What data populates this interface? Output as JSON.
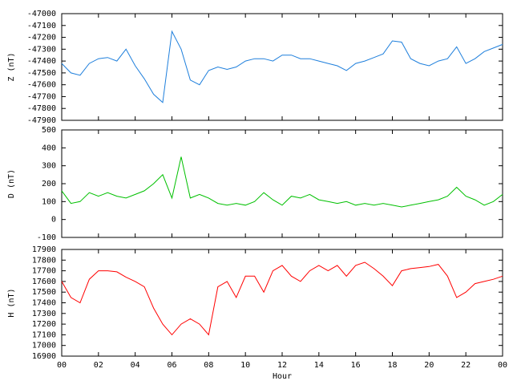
{
  "chart_data": [
    {
      "type": "line",
      "ylabel": "Z (nT)",
      "color": "#1e7fdc",
      "xlim": [
        0,
        24
      ],
      "ylim": [
        -47900,
        -47000
      ],
      "yticks": [
        -47900,
        -47800,
        -47700,
        -47600,
        -47500,
        -47400,
        -47300,
        -47200,
        -47100,
        -47000
      ],
      "x": [
        0,
        0.5,
        1,
        1.5,
        2,
        2.5,
        3,
        3.5,
        4,
        4.5,
        5,
        5.5,
        6,
        6.5,
        7,
        7.5,
        8,
        8.5,
        9,
        9.5,
        10,
        10.5,
        11,
        11.5,
        12,
        12.5,
        13,
        13.5,
        14,
        14.5,
        15,
        15.5,
        16,
        16.5,
        17,
        17.5,
        18,
        18.5,
        19,
        19.5,
        20,
        20.5,
        21,
        21.5,
        22,
        22.5,
        23,
        23.5,
        24
      ],
      "values": [
        -47420,
        -47500,
        -47520,
        -47420,
        -47380,
        -47370,
        -47400,
        -47300,
        -47440,
        -47550,
        -47680,
        -47750,
        -47150,
        -47300,
        -47560,
        -47600,
        -47480,
        -47450,
        -47470,
        -47450,
        -47400,
        -47380,
        -47380,
        -47400,
        -47350,
        -47350,
        -47380,
        -47380,
        -47400,
        -47420,
        -47440,
        -47480,
        -47420,
        -47400,
        -47370,
        -47340,
        -47230,
        -47240,
        -47380,
        -47420,
        -47440,
        -47400,
        -47380,
        -47280,
        -47420,
        -47380,
        -47320,
        -47290,
        -47260
      ]
    },
    {
      "type": "line",
      "ylabel": "D (nT)",
      "color": "#00c000",
      "xlim": [
        0,
        24
      ],
      "ylim": [
        -100,
        500
      ],
      "yticks": [
        -100,
        0,
        100,
        200,
        300,
        400,
        500
      ],
      "x": [
        0,
        0.5,
        1,
        1.5,
        2,
        2.5,
        3,
        3.5,
        4,
        4.5,
        5,
        5.5,
        6,
        6.5,
        7,
        7.5,
        8,
        8.5,
        9,
        9.5,
        10,
        10.5,
        11,
        11.5,
        12,
        12.5,
        13,
        13.5,
        14,
        14.5,
        15,
        15.5,
        16,
        16.5,
        17,
        17.5,
        18,
        18.5,
        19,
        19.5,
        20,
        20.5,
        21,
        21.5,
        22,
        22.5,
        23,
        23.5,
        24
      ],
      "values": [
        160,
        90,
        100,
        150,
        130,
        150,
        130,
        120,
        140,
        160,
        200,
        250,
        120,
        350,
        120,
        140,
        120,
        90,
        80,
        90,
        80,
        100,
        150,
        110,
        80,
        130,
        120,
        140,
        110,
        100,
        90,
        100,
        80,
        90,
        80,
        90,
        80,
        70,
        80,
        90,
        100,
        110,
        130,
        180,
        130,
        110,
        80,
        100,
        140
      ]
    },
    {
      "type": "line",
      "ylabel": "H (nT)",
      "xlabel": "Hour",
      "color": "#ff0000",
      "xlim": [
        0,
        24
      ],
      "xticks": [
        {
          "value": 0,
          "label": "00"
        },
        {
          "value": 2,
          "label": "02"
        },
        {
          "value": 4,
          "label": "04"
        },
        {
          "value": 6,
          "label": "06"
        },
        {
          "value": 8,
          "label": "08"
        },
        10,
        12,
        14,
        16,
        18,
        20,
        22,
        {
          "value": 24,
          "label": "00"
        }
      ],
      "ylim": [
        16900,
        17900
      ],
      "yticks": [
        16900,
        17000,
        17100,
        17200,
        17300,
        17400,
        17500,
        17600,
        17700,
        17800,
        17900
      ],
      "x": [
        0,
        0.5,
        1,
        1.5,
        2,
        2.5,
        3,
        3.5,
        4,
        4.5,
        5,
        5.5,
        6,
        6.5,
        7,
        7.5,
        8,
        8.5,
        9,
        9.5,
        10,
        10.5,
        11,
        11.5,
        12,
        12.5,
        13,
        13.5,
        14,
        14.5,
        15,
        15.5,
        16,
        16.5,
        17,
        17.5,
        18,
        18.5,
        19,
        19.5,
        20,
        20.5,
        21,
        21.5,
        22,
        22.5,
        23,
        23.5,
        24
      ],
      "values": [
        17600,
        17450,
        17400,
        17620,
        17700,
        17700,
        17690,
        17640,
        17600,
        17550,
        17350,
        17200,
        17100,
        17200,
        17250,
        17200,
        17100,
        17550,
        17600,
        17450,
        17650,
        17650,
        17500,
        17700,
        17750,
        17650,
        17600,
        17700,
        17750,
        17700,
        17750,
        17650,
        17750,
        17780,
        17720,
        17650,
        17560,
        17700,
        17720,
        17730,
        17740,
        17760,
        17650,
        17450,
        17500,
        17580,
        17600,
        17620,
        17650
      ]
    }
  ]
}
